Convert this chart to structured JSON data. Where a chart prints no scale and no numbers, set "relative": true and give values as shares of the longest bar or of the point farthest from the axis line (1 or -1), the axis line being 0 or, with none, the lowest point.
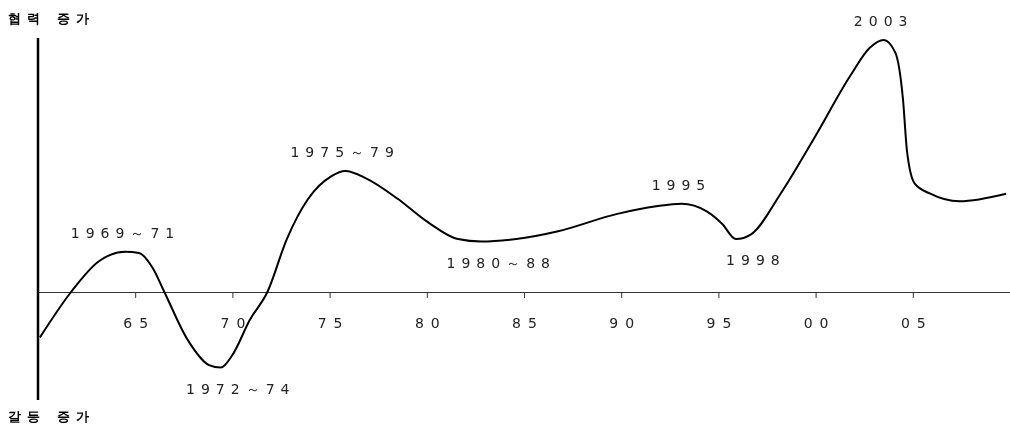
{
  "chart_data": {
    "type": "line",
    "relative": true,
    "ylabel": "협력 증가",
    "xlim": [
      1960,
      2010
    ],
    "xticks": [
      {
        "value": 1965,
        "label": "65"
      },
      {
        "value": 1970,
        "label": "70"
      },
      {
        "value": 1975,
        "label": "75"
      },
      {
        "value": 1980,
        "label": "80"
      },
      {
        "value": 1985,
        "label": "85"
      },
      {
        "value": 1990,
        "label": "90"
      },
      {
        "value": 1995,
        "label": "95"
      },
      {
        "value": 2000,
        "label": "00"
      },
      {
        "value": 2005,
        "label": "05"
      }
    ],
    "series": [
      {
        "color": "#000000",
        "x": [
          1960.1,
          1961.7,
          1963.1,
          1964.5,
          1965.2,
          1965.9,
          1966.5,
          1967.7,
          1968.8,
          1969.4,
          1970.0,
          1970.9,
          1971.8,
          1972.8,
          1973.9,
          1975.1,
          1975.8,
          1976.9,
          1978.5,
          1980.0,
          1981.6,
          1982.8,
          1984.6,
          1986.7,
          1989.8,
          1991.8,
          1993.1,
          1994.4,
          1995.2,
          1995.9,
          1996.7,
          1998.2,
          2000.0,
          2001.8,
          2002.8,
          2003.5,
          2004.1,
          2004.5,
          2004.7,
          2005.1,
          2005.9,
          2007.4,
          2009.8
        ],
        "values": [
          -0.18,
          0,
          0.12,
          0.16,
          0.155,
          0.095,
          0,
          -0.19,
          -0.29,
          -0.3,
          -0.25,
          -0.11,
          0,
          0.21,
          0.37,
          0.46,
          0.48,
          0.45,
          0.37,
          0.28,
          0.21,
          0.2,
          0.21,
          0.24,
          0.31,
          0.34,
          0.35,
          0.32,
          0.27,
          0.21,
          0.23,
          0.39,
          0.62,
          0.86,
          0.97,
          1,
          0.95,
          0.76,
          0.56,
          0.43,
          0.39,
          0.36,
          0.39
        ]
      }
    ],
    "annotations": [
      {
        "text": "1969～71",
        "x": 1964.5,
        "y": 0.16
      },
      {
        "text": "1972～74",
        "x": 1969.4,
        "y": -0.3
      },
      {
        "text": "1975～79",
        "x": 1975.8,
        "y": 0.48
      },
      {
        "text": "1980～88",
        "x": 1982.8,
        "y": 0.2
      },
      {
        "text": "1995",
        "x": 1993.1,
        "y": 0.35
      },
      {
        "text": "1998",
        "x": 1995.9,
        "y": 0.21
      },
      {
        "text": "2003",
        "x": 2003.5,
        "y": 1
      },
      "갈등 증가"
    ],
    "grid": false,
    "marker": "none",
    "line_style": "solid"
  }
}
